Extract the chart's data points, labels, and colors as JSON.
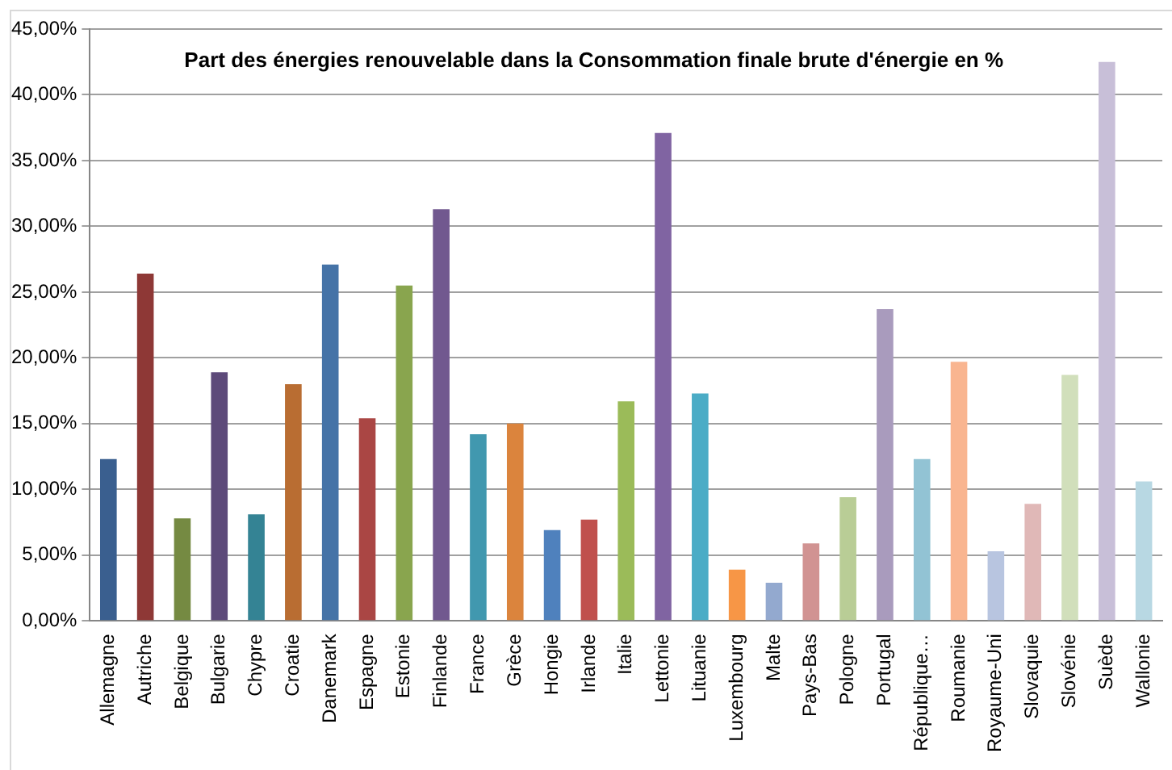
{
  "chart_data": {
    "type": "bar",
    "title": "Part des énergies renouvelable dans la Consommation finale brute d'énergie en %",
    "categories": [
      "Allemagne",
      "Autriche",
      "Belgique",
      "Bulgarie",
      "Chypre",
      "Croatie",
      "Danemark",
      "Espagne",
      "Estonie",
      "Finlande",
      "France",
      "Grèce",
      "Hongie",
      "Irlande",
      "Italie",
      "Lettonie",
      "Lituanie",
      "Luxembourg",
      "Malte",
      "Pays-Bas",
      "Pologne",
      "Portugal",
      "République…",
      "Roumanie",
      "Royaume-Uni",
      "Slovaquie",
      "Slovénie",
      "Suède",
      "Wallonie"
    ],
    "values": [
      12.3,
      26.4,
      7.8,
      18.9,
      8.1,
      18.0,
      27.1,
      15.4,
      25.5,
      31.3,
      14.2,
      15.0,
      6.9,
      7.7,
      16.7,
      37.1,
      17.3,
      3.9,
      2.9,
      5.9,
      9.4,
      23.7,
      12.3,
      19.7,
      5.3,
      8.9,
      18.7,
      42.5,
      10.6
    ],
    "colors": [
      "#3a5f8f",
      "#8e3836",
      "#758a42",
      "#5d4a7a",
      "#348394",
      "#b96d32",
      "#4573a7",
      "#aa4644",
      "#89a54e",
      "#71588f",
      "#4198af",
      "#db843d",
      "#4f81bd",
      "#c0504d",
      "#9bbb59",
      "#8064a2",
      "#4bacc6",
      "#f79646",
      "#93a9cf",
      "#d19392",
      "#b9cd96",
      "#a99bbd",
      "#92c3d4",
      "#f9b590",
      "#b8c5e0",
      "#e0b8b7",
      "#d1dfbb",
      "#c8bfd8",
      "#b8d8e3"
    ],
    "ylim": [
      0,
      45
    ],
    "yticks": [
      {
        "value": 0,
        "label": "0,00%"
      },
      {
        "value": 5,
        "label": "5,00%"
      },
      {
        "value": 10,
        "label": "10,00%"
      },
      {
        "value": 15,
        "label": "15,00%"
      },
      {
        "value": 20,
        "label": "20,00%"
      },
      {
        "value": 25,
        "label": "25,00%"
      },
      {
        "value": 30,
        "label": "30,00%"
      },
      {
        "value": 35,
        "label": "35,00%"
      },
      {
        "value": 40,
        "label": "40,00%"
      },
      {
        "value": 45,
        "label": "45,00%"
      }
    ],
    "grid": "y",
    "legend": false
  }
}
